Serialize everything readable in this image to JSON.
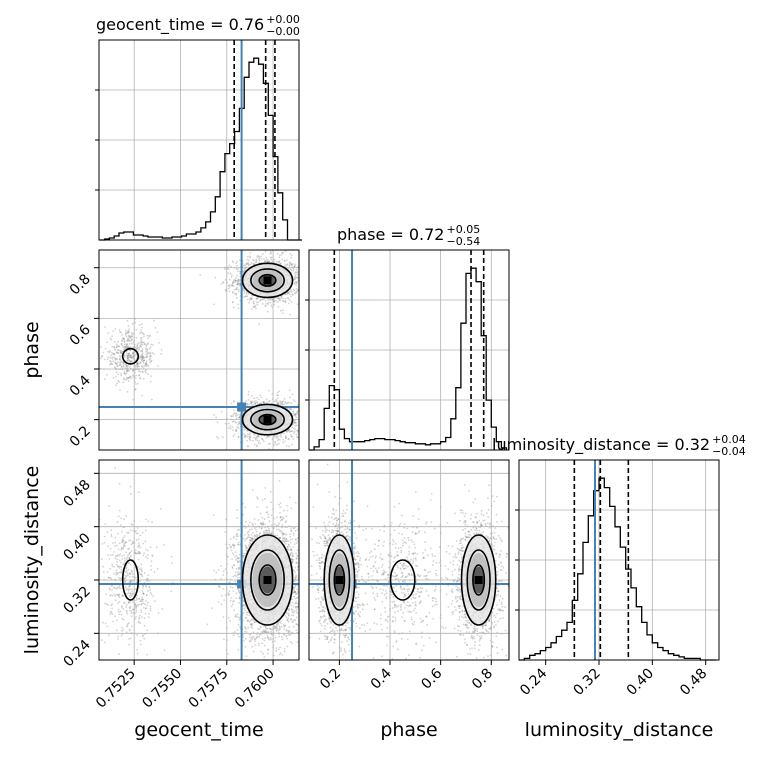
{
  "colors": {
    "truth": "#4682b4",
    "hist": "#000000",
    "grid": "#b0b0b0",
    "points": "#808080"
  },
  "parameters": [
    {
      "name": "geocent_time",
      "truth": 0.7583,
      "range": [
        0.7506,
        0.7614
      ],
      "ticks": [
        0.7525,
        0.755,
        0.7575,
        0.76
      ],
      "tick_labels": [
        "0.7525",
        "0.7550",
        "0.7575",
        "0.7600"
      ],
      "quantiles": [
        0.7579,
        0.7596,
        0.7601
      ]
    },
    {
      "name": "phase",
      "truth": 0.25,
      "range": [
        0.08,
        0.87
      ],
      "ticks": [
        0.2,
        0.4,
        0.6,
        0.8
      ],
      "tick_labels": [
        "0.2",
        "0.4",
        "0.6",
        "0.8"
      ],
      "quantiles": [
        0.18,
        0.72,
        0.77
      ]
    },
    {
      "name": "luminosity_distance",
      "truth": 0.314,
      "range": [
        0.2,
        0.5
      ],
      "ticks": [
        0.24,
        0.32,
        0.4,
        0.48
      ],
      "tick_labels": [
        "0.24",
        "0.32",
        "0.40",
        "0.48"
      ],
      "quantiles": [
        0.283,
        0.322,
        0.364
      ]
    }
  ],
  "titles": [
    {
      "label": "geocent_time = 0.76",
      "sup": "+0.00",
      "sub": "−0.00"
    },
    {
      "label": "phase = 0.72",
      "sup": "+0.05",
      "sub": "−0.54"
    },
    {
      "label": "luminosity_distance = 0.32",
      "sup": "+0.04",
      "sub": "−0.04"
    }
  ],
  "axis_labels": {
    "x": [
      "geocent_time",
      "phase",
      "luminosity_distance"
    ],
    "y": [
      "phase",
      "luminosity_distance"
    ]
  },
  "chart_data": {
    "type": "corner",
    "histograms": [
      {
        "param": "geocent_time",
        "bin_edges": [
          0.75064,
          0.7509,
          0.75116,
          0.75142,
          0.75168,
          0.75194,
          0.7522,
          0.75246,
          0.75272,
          0.75298,
          0.75324,
          0.7535,
          0.75376,
          0.75402,
          0.75428,
          0.75454,
          0.7548,
          0.75506,
          0.75532,
          0.75558,
          0.75584,
          0.7561,
          0.75636,
          0.75662,
          0.75688,
          0.75714,
          0.7574,
          0.75766,
          0.75792,
          0.75818,
          0.75844,
          0.7587,
          0.75896,
          0.75922,
          0.75948,
          0.75974,
          0.76,
          0.76026,
          0.76052,
          0.76078,
          0.76104,
          0.7613,
          0.76156
        ],
        "counts": [
          0,
          1,
          2,
          4,
          7,
          8,
          8,
          5,
          5,
          4,
          3,
          3,
          3,
          2,
          2,
          3,
          3,
          4,
          6,
          6,
          8,
          12,
          18,
          28,
          43,
          68,
          86,
          96,
          108,
          131,
          162,
          177,
          181,
          175,
          156,
          124,
          83,
          47,
          20,
          0,
          0,
          0
        ]
      },
      {
        "param": "phase",
        "bin_edges": [
          0.08,
          0.1,
          0.12,
          0.14,
          0.16,
          0.18,
          0.2,
          0.22,
          0.24,
          0.26,
          0.28,
          0.3,
          0.32,
          0.34,
          0.36,
          0.38,
          0.4,
          0.42,
          0.44,
          0.46,
          0.48,
          0.5,
          0.52,
          0.54,
          0.56,
          0.58,
          0.6,
          0.62,
          0.64,
          0.66,
          0.68,
          0.7,
          0.72,
          0.74,
          0.76,
          0.78,
          0.8,
          0.82,
          0.84,
          0.86
        ],
        "counts": [
          0,
          3,
          10,
          40,
          62,
          58,
          20,
          11,
          8,
          8,
          8,
          9,
          10,
          11,
          11,
          10,
          10,
          9,
          8,
          7,
          7,
          6,
          6,
          5,
          6,
          6,
          8,
          12,
          30,
          60,
          122,
          170,
          175,
          162,
          110,
          48,
          22,
          8,
          2
        ]
      },
      {
        "param": "luminosity_distance",
        "bin_edges": [
          0.2,
          0.208,
          0.216,
          0.224,
          0.232,
          0.24,
          0.248,
          0.256,
          0.264,
          0.272,
          0.28,
          0.288,
          0.296,
          0.304,
          0.312,
          0.32,
          0.328,
          0.336,
          0.344,
          0.352,
          0.36,
          0.368,
          0.376,
          0.384,
          0.392,
          0.4,
          0.408,
          0.416,
          0.424,
          0.432,
          0.44,
          0.448,
          0.456,
          0.464,
          0.472,
          0.48,
          0.488,
          0.496
        ],
        "counts": [
          0,
          1,
          3,
          4,
          6,
          8,
          11,
          15,
          19,
          24,
          38,
          55,
          75,
          92,
          108,
          116,
          110,
          98,
          85,
          72,
          58,
          46,
          34,
          24,
          16,
          11,
          8,
          6,
          4,
          3,
          2,
          1,
          1,
          1,
          0,
          0,
          0
        ]
      }
    ],
    "scatter_clusters": [
      {
        "x": "geocent_time",
        "y": "phase",
        "center": [
          0.7597,
          0.75
        ],
        "sd": [
          0.0009,
          0.045
        ],
        "n": 1400
      },
      {
        "x": "geocent_time",
        "y": "phase",
        "center": [
          0.7597,
          0.2
        ],
        "sd": [
          0.0009,
          0.04
        ],
        "n": 1300
      },
      {
        "x": "geocent_time",
        "y": "phase",
        "center": [
          0.7523,
          0.45
        ],
        "sd": [
          0.0007,
          0.05
        ],
        "n": 500
      },
      {
        "x": "geocent_time",
        "y": "luminosity_distance",
        "center": [
          0.7597,
          0.32
        ],
        "sd": [
          0.0009,
          0.045
        ],
        "n": 2700
      },
      {
        "x": "geocent_time",
        "y": "luminosity_distance",
        "center": [
          0.7523,
          0.32
        ],
        "sd": [
          0.0007,
          0.05
        ],
        "n": 500
      },
      {
        "x": "phase",
        "y": "luminosity_distance",
        "center": [
          0.75,
          0.32
        ],
        "sd": [
          0.045,
          0.045
        ],
        "n": 1400
      },
      {
        "x": "phase",
        "y": "luminosity_distance",
        "center": [
          0.2,
          0.32
        ],
        "sd": [
          0.04,
          0.045
        ],
        "n": 1300
      },
      {
        "x": "phase",
        "y": "luminosity_distance",
        "center": [
          0.45,
          0.32
        ],
        "sd": [
          0.08,
          0.05
        ],
        "n": 500
      }
    ],
    "contour_levels": [
      0.5,
      1.0,
      1.5
    ]
  }
}
